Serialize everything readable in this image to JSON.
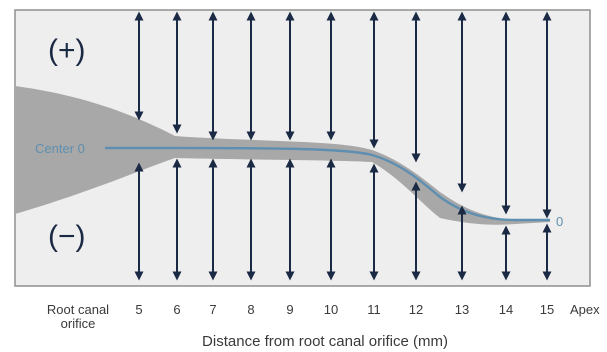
{
  "diagram": {
    "upper_sign": "(+)",
    "lower_sign": "(−)",
    "center_label": "Center 0",
    "end_label": "0",
    "tick_labels": [
      "5",
      "6",
      "7",
      "8",
      "9",
      "10",
      "11",
      "12",
      "13",
      "14",
      "15"
    ],
    "left_label_line1": "Root canal",
    "left_label_line2": "orifice",
    "right_label": "Apex",
    "axis_title": "Distance from root canal orifice (mm)",
    "colors": {
      "canal": "#5e8fb0",
      "arrows": "#1b2a44",
      "taper": "#a8a8a8",
      "panel": "#eeeeee"
    }
  }
}
